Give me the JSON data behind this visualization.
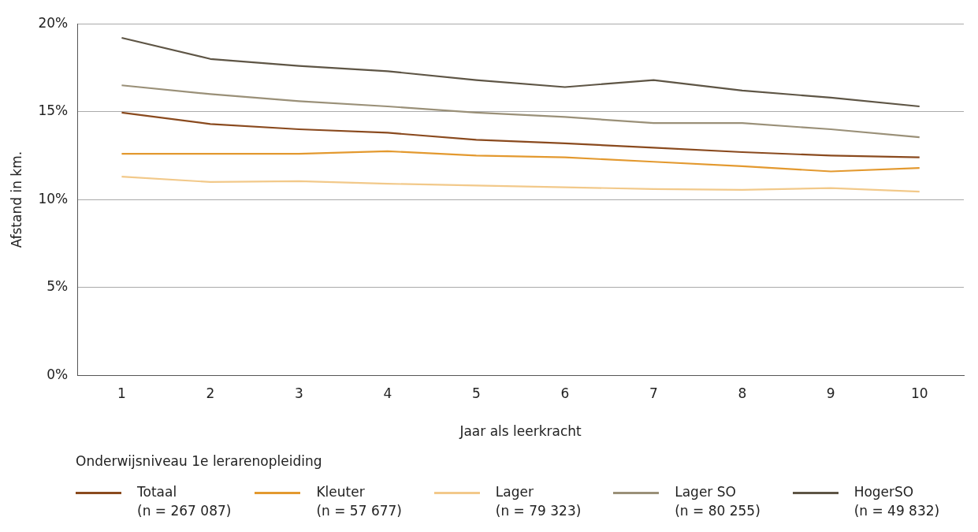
{
  "chart_data": {
    "type": "line",
    "xlabel": "Jaar als leerkracht",
    "ylabel": "Afstand in km.",
    "legend_title": "Onderwijsniveau 1e lerarenopleiding",
    "legend": "bottom",
    "grid": "y",
    "marker": "none",
    "line_style": "solid",
    "categories": [
      "1",
      "2",
      "3",
      "4",
      "5",
      "6",
      "7",
      "8",
      "9",
      "10"
    ],
    "ylim": [
      0,
      20
    ],
    "yticks": [
      {
        "value": 0,
        "label": "0%"
      },
      {
        "value": 5,
        "label": "5%"
      },
      {
        "value": 10,
        "label": "10%"
      },
      {
        "value": 15,
        "label": "15%"
      },
      {
        "value": 20,
        "label": "20%"
      }
    ],
    "series": [
      {
        "name": "Totaal\n(n = 267 087)",
        "color": "#8a4a1e",
        "values": [
          14.95,
          14.3,
          14.0,
          13.8,
          13.4,
          13.2,
          12.95,
          12.7,
          12.5,
          12.4
        ]
      },
      {
        "name": "Kleuter\n(n = 57 677)",
        "color": "#e3992f",
        "values": [
          12.6,
          12.6,
          12.6,
          12.75,
          12.5,
          12.4,
          12.15,
          11.9,
          11.6,
          11.8
        ]
      },
      {
        "name": "Lager\n(n = 79 323)",
        "color": "#f2c98a",
        "values": [
          11.3,
          11.0,
          11.05,
          10.9,
          10.8,
          10.7,
          10.6,
          10.55,
          10.65,
          10.45
        ]
      },
      {
        "name": "Lager SO\n(n = 80 255)",
        "color": "#9a9078",
        "values": [
          16.5,
          16.0,
          15.6,
          15.3,
          14.95,
          14.7,
          14.35,
          14.35,
          14.0,
          13.55
        ]
      },
      {
        "name": "HogerSO\n(n = 49 832)",
        "color": "#5e5545",
        "values": [
          19.2,
          18.0,
          17.6,
          17.3,
          16.8,
          16.4,
          16.8,
          16.2,
          15.8,
          15.3
        ]
      }
    ]
  }
}
